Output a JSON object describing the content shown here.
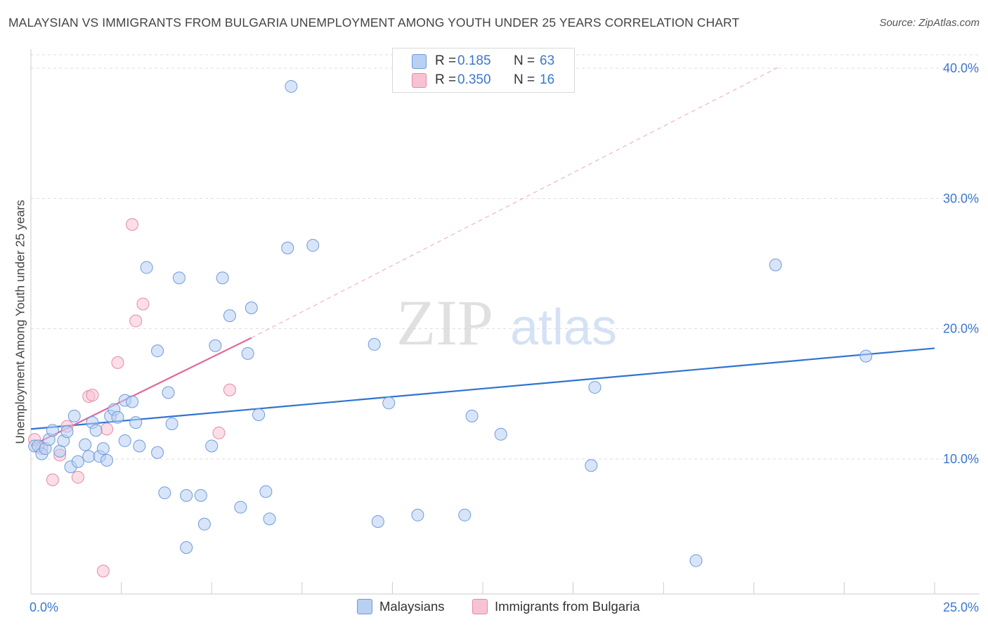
{
  "header": {
    "title": "MALAYSIAN VS IMMIGRANTS FROM BULGARIA UNEMPLOYMENT AMONG YOUTH UNDER 25 YEARS CORRELATION CHART",
    "source": "Source: ZipAtlas.com"
  },
  "watermark": {
    "zip": "ZIP",
    "atlas": "atlas"
  },
  "legend_top": {
    "rows": [
      {
        "r_label": "R =",
        "r_value": "0.185",
        "n_label": "N =",
        "n_value": "63"
      },
      {
        "r_label": "R =",
        "r_value": "0.350",
        "n_label": "N =",
        "n_value": "16"
      }
    ]
  },
  "legend_bottom": {
    "items": [
      {
        "label": "Malaysians"
      },
      {
        "label": "Immigrants from Bulgaria"
      }
    ]
  },
  "colors": {
    "malaysian_fill": "#b8d0f2",
    "malaysian_stroke": "#6d9bdc",
    "malaysian_line": "#2f74d0",
    "bulgaria_fill": "#f7c3d2",
    "bulgaria_stroke": "#e58aa7",
    "bulgaria_line": "#e2699a",
    "axis_text": "#3a77cf",
    "grid": "#dddddd"
  },
  "chart_data": {
    "type": "scatter",
    "title": "MALAYSIAN VS IMMIGRANTS FROM BULGARIA UNEMPLOYMENT AMONG YOUTH UNDER 25 YEARS CORRELATION CHART",
    "xlabel": "",
    "ylabel": "Unemployment Among Youth under 25 years",
    "xlim": [
      0,
      25
    ],
    "ylim": [
      0,
      41
    ],
    "x_tick_labels": [
      "0.0%",
      "25.0%"
    ],
    "y_ticks": [
      10,
      20,
      30,
      40
    ],
    "y_tick_labels": [
      "10.0%",
      "20.0%",
      "30.0%",
      "40.0%"
    ],
    "grid": true,
    "series": [
      {
        "name": "Malaysians",
        "r": 0.185,
        "n": 63,
        "trend": {
          "x": [
            0,
            25
          ],
          "y": [
            12.3,
            18.5
          ]
        },
        "points": [
          [
            0.1,
            11.0
          ],
          [
            0.2,
            11.0
          ],
          [
            0.3,
            10.4
          ],
          [
            0.4,
            10.8
          ],
          [
            0.5,
            11.5
          ],
          [
            0.6,
            12.2
          ],
          [
            0.8,
            10.6
          ],
          [
            0.9,
            11.4
          ],
          [
            1.0,
            12.1
          ],
          [
            1.1,
            9.4
          ],
          [
            1.2,
            13.3
          ],
          [
            1.3,
            9.8
          ],
          [
            1.5,
            11.1
          ],
          [
            1.6,
            10.2
          ],
          [
            1.7,
            12.8
          ],
          [
            1.8,
            12.2
          ],
          [
            1.9,
            10.2
          ],
          [
            2.0,
            10.8
          ],
          [
            2.1,
            9.9
          ],
          [
            2.2,
            13.3
          ],
          [
            2.3,
            13.8
          ],
          [
            2.4,
            13.2
          ],
          [
            2.6,
            14.5
          ],
          [
            2.6,
            11.4
          ],
          [
            2.8,
            14.4
          ],
          [
            2.9,
            12.8
          ],
          [
            3.0,
            11.0
          ],
          [
            3.2,
            24.7
          ],
          [
            3.5,
            10.5
          ],
          [
            3.5,
            18.3
          ],
          [
            3.7,
            7.4
          ],
          [
            3.8,
            15.1
          ],
          [
            3.9,
            12.7
          ],
          [
            4.1,
            23.9
          ],
          [
            4.3,
            3.2
          ],
          [
            4.3,
            7.2
          ],
          [
            4.7,
            7.2
          ],
          [
            4.8,
            5.0
          ],
          [
            5.0,
            11.0
          ],
          [
            5.1,
            18.7
          ],
          [
            5.3,
            23.9
          ],
          [
            5.5,
            21.0
          ],
          [
            5.8,
            6.3
          ],
          [
            6.0,
            18.1
          ],
          [
            6.1,
            21.6
          ],
          [
            6.3,
            13.4
          ],
          [
            6.5,
            7.5
          ],
          [
            6.6,
            5.4
          ],
          [
            7.1,
            26.2
          ],
          [
            7.2,
            38.6
          ],
          [
            7.8,
            26.4
          ],
          [
            9.5,
            18.8
          ],
          [
            9.6,
            5.2
          ],
          [
            9.9,
            14.3
          ],
          [
            10.7,
            5.7
          ],
          [
            12.0,
            5.7
          ],
          [
            12.2,
            13.3
          ],
          [
            13.0,
            11.9
          ],
          [
            15.5,
            9.5
          ],
          [
            15.6,
            15.5
          ],
          [
            18.4,
            2.2
          ],
          [
            20.6,
            24.9
          ],
          [
            23.1,
            17.9
          ]
        ]
      },
      {
        "name": "Immigrants from Bulgaria",
        "r": 0.35,
        "n": 16,
        "trend": {
          "x": [
            0,
            6.1
          ],
          "y": [
            11.0,
            19.3
          ]
        },
        "trend_extension": {
          "x": [
            6.1,
            20.7
          ],
          "y": [
            19.3,
            40.1
          ]
        },
        "points": [
          [
            0.1,
            11.5
          ],
          [
            0.3,
            10.8
          ],
          [
            0.6,
            8.4
          ],
          [
            0.8,
            10.3
          ],
          [
            1.0,
            12.5
          ],
          [
            1.3,
            8.6
          ],
          [
            1.6,
            14.8
          ],
          [
            1.7,
            14.9
          ],
          [
            2.0,
            1.4
          ],
          [
            2.1,
            12.3
          ],
          [
            2.4,
            17.4
          ],
          [
            2.8,
            28.0
          ],
          [
            2.9,
            20.6
          ],
          [
            3.1,
            21.9
          ],
          [
            5.2,
            12.0
          ],
          [
            5.5,
            15.3
          ]
        ]
      }
    ]
  }
}
